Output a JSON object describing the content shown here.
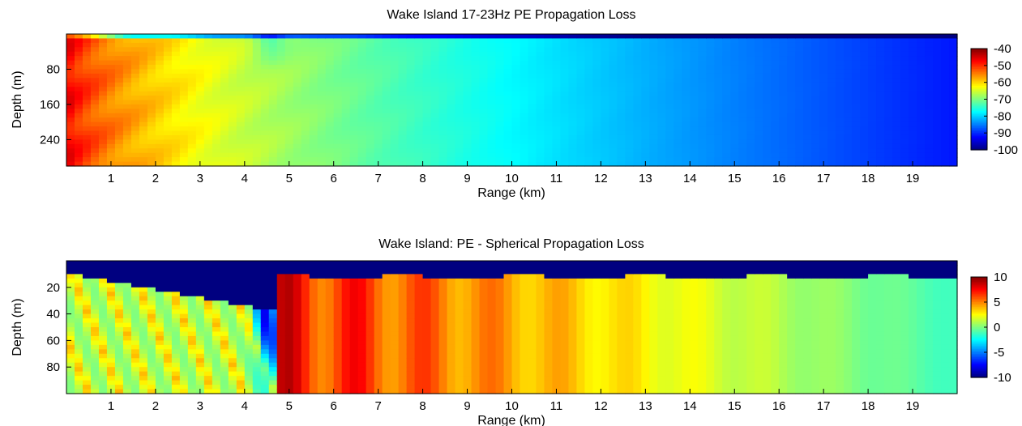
{
  "chart_data": [
    {
      "type": "heatmap",
      "title": "Wake Island 17-23Hz PE Propagation Loss",
      "xlabel": "Range (km)",
      "ylabel": "Depth (m)",
      "xlim": [
        0,
        20
      ],
      "ylim": [
        0,
        300
      ],
      "y_direction": "down",
      "xticks": [
        1,
        2,
        3,
        4,
        5,
        6,
        7,
        8,
        9,
        10,
        11,
        12,
        13,
        14,
        15,
        16,
        17,
        18,
        19
      ],
      "yticks": [
        80,
        160,
        240
      ],
      "colorbar": {
        "min": -100,
        "max": -40,
        "ticks": [
          -40,
          -50,
          -60,
          -70,
          -80,
          -90,
          -100
        ],
        "colormap": "jet"
      },
      "field": "propagation_loss"
    },
    {
      "type": "heatmap",
      "title": "Wake Island: PE - Spherical Propagation Loss",
      "xlabel": "Range (km)",
      "ylabel": "Depth (m)",
      "xlim": [
        0,
        20
      ],
      "ylim": [
        0,
        100
      ],
      "y_direction": "down",
      "xticks": [
        1,
        2,
        3,
        4,
        5,
        6,
        7,
        8,
        9,
        10,
        11,
        12,
        13,
        14,
        15,
        16,
        17,
        18,
        19
      ],
      "yticks": [
        20,
        40,
        60,
        80
      ],
      "colorbar": {
        "min": -10,
        "max": 10,
        "ticks": [
          10,
          5,
          0,
          -5,
          -10
        ],
        "colormap": "jet"
      },
      "field": "pe_minus_spherical"
    }
  ]
}
